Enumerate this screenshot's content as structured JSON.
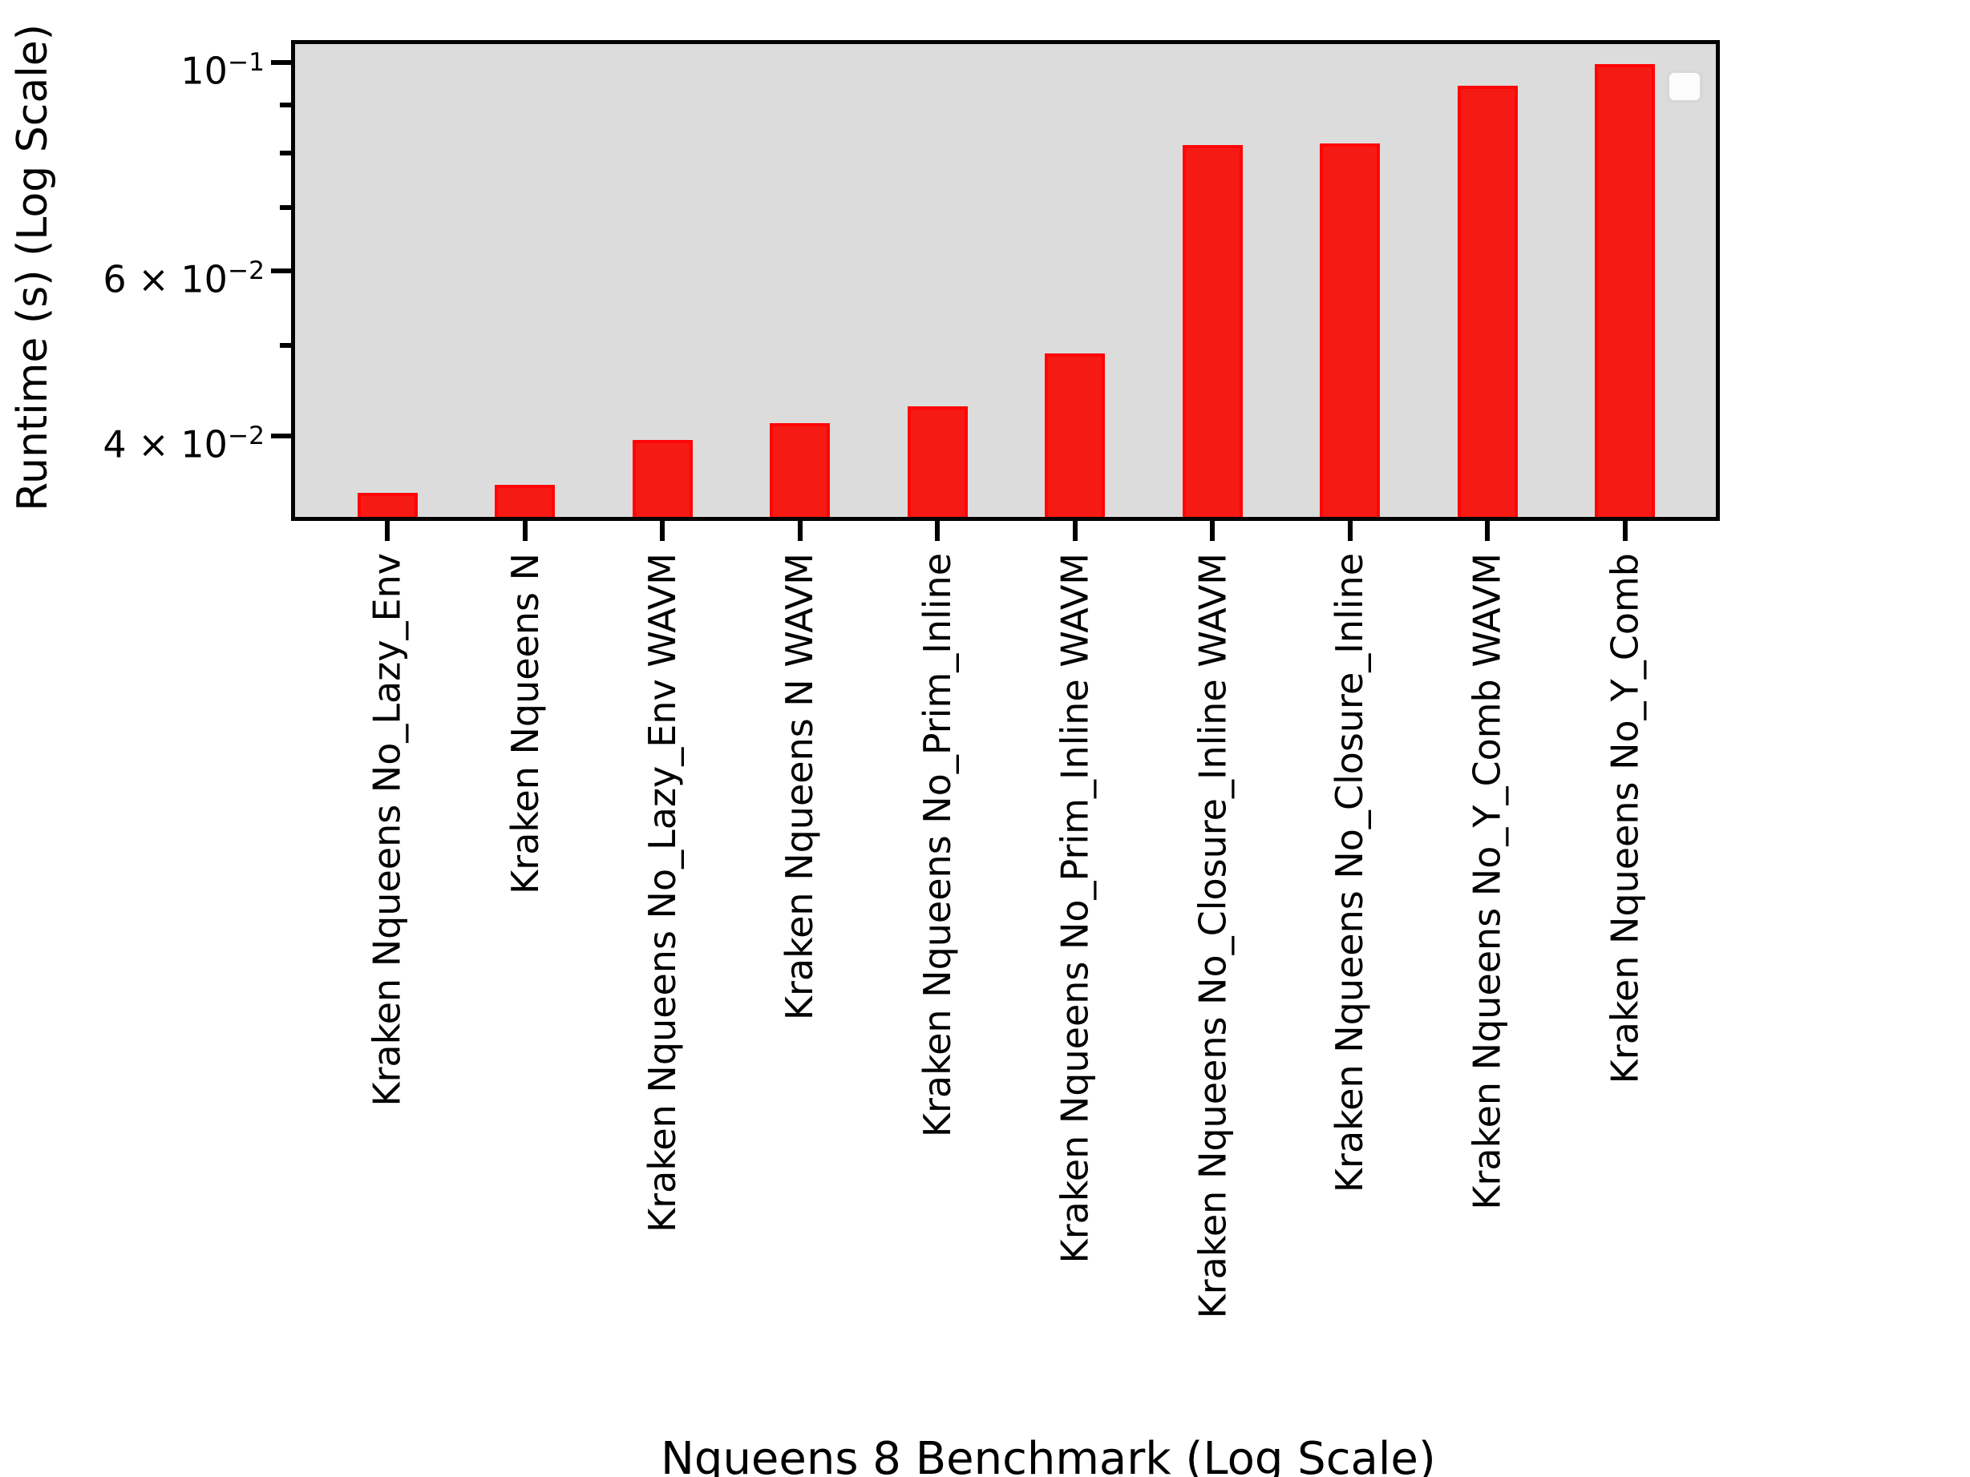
{
  "chart_data": {
    "type": "bar",
    "title": "",
    "xlabel": "Nqueens 8 Benchmark (Log Scale)",
    "ylabel": "Runtime (s) (Log Scale)",
    "yscale": "log",
    "ylim": [
      0.0328,
      0.1046
    ],
    "grid": false,
    "legend": {
      "visible": true,
      "entries": []
    },
    "plot_bg": "#dcdcdc",
    "bar_color": "#f61a14",
    "bar_edge_color": "#ff0505",
    "categories": [
      "Kraken Nqueens No_Lazy_Env",
      "Kraken Nqueens N",
      "Kraken Nqueens No_Lazy_Env WAVM",
      "Kraken Nqueens N WAVM",
      "Kraken Nqueens No_Prim_Inline",
      "Kraken Nqueens No_Prim_Inline WAVM",
      "Kraken Nqueens No_Closure_Inline WAVM",
      "Kraken Nqueens No_Closure_Inline",
      "Kraken Nqueens No_Y_Comb WAVM",
      "Kraken Nqueens No_Y_Comb"
    ],
    "values": [
      0.0348,
      0.0355,
      0.0396,
      0.0413,
      0.043,
      0.049,
      0.0816,
      0.0819,
      0.0945,
      0.0996
    ],
    "y_ticks": [
      {
        "value": 0.1,
        "label_base": "10",
        "label_exp": "−1",
        "major": true
      },
      {
        "value": 0.09,
        "label_base": "",
        "label_exp": "",
        "major": false
      },
      {
        "value": 0.08,
        "label_base": "",
        "label_exp": "",
        "major": false
      },
      {
        "value": 0.07,
        "label_base": "",
        "label_exp": "",
        "major": false
      },
      {
        "value": 0.06,
        "label_base": "6 × 10",
        "label_exp": "−2",
        "major": true
      },
      {
        "value": 0.05,
        "label_base": "",
        "label_exp": "",
        "major": false
      },
      {
        "value": 0.04,
        "label_base": "4 × 10",
        "label_exp": "−2",
        "major": true
      }
    ]
  }
}
